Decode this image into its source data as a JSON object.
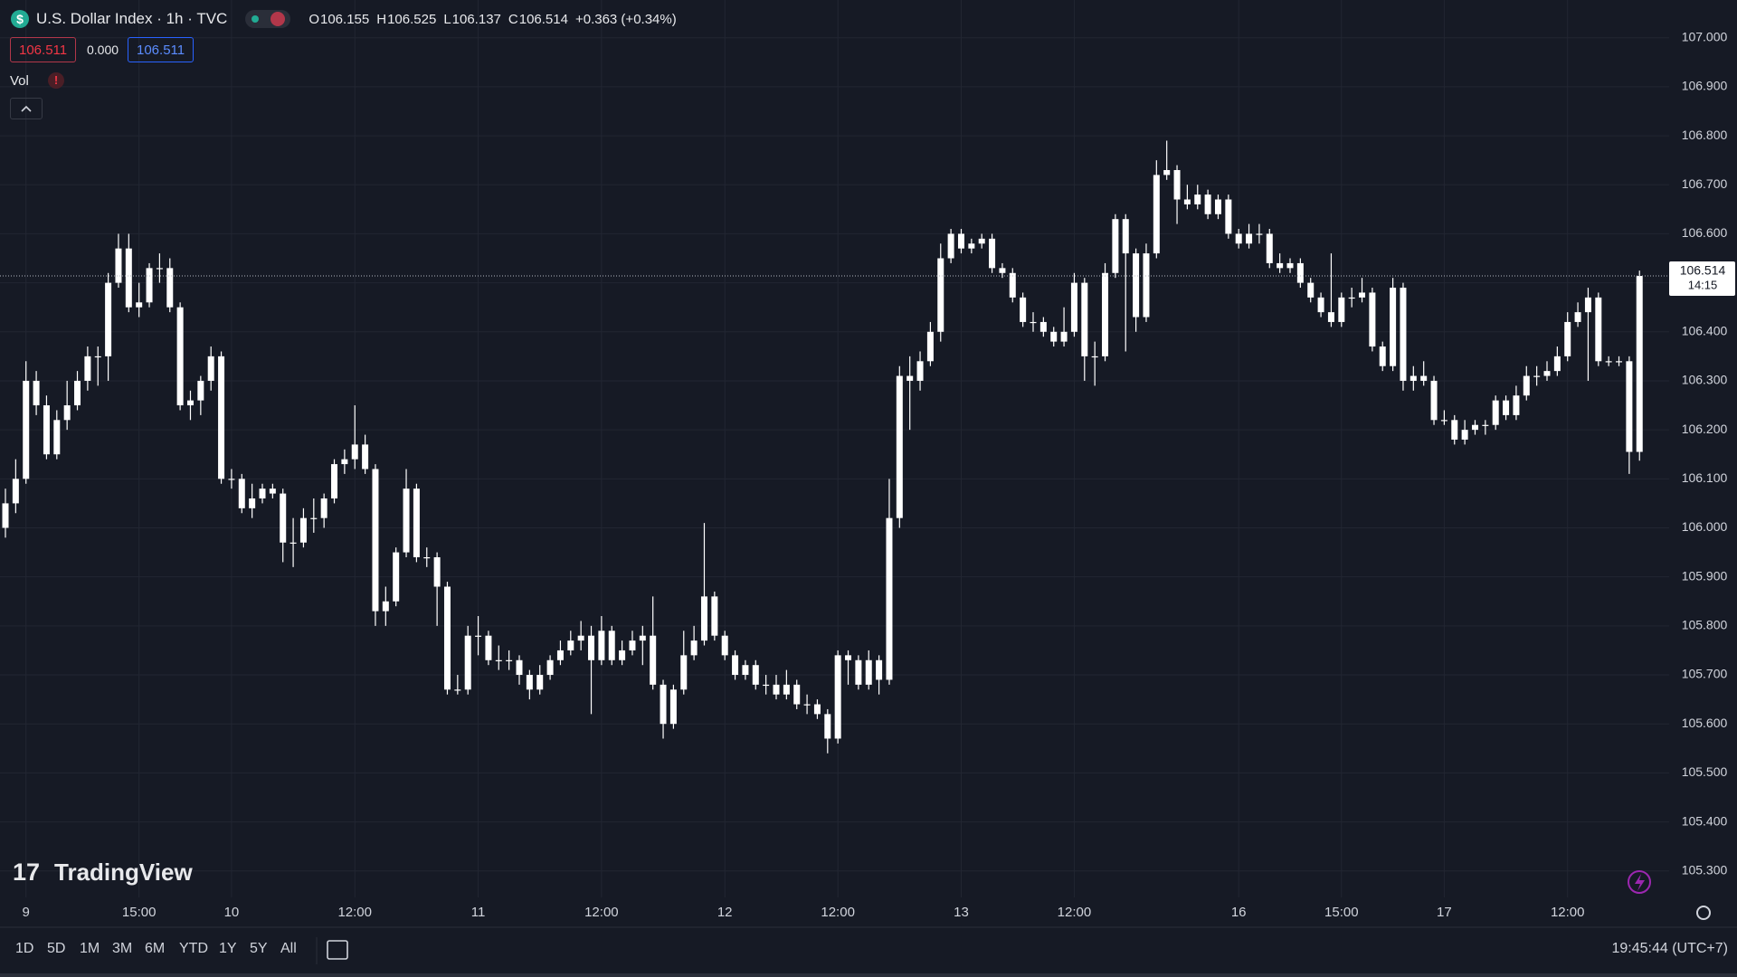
{
  "header": {
    "title": "U.S. Dollar Index · 1h · TVC",
    "ohlc_labels": [
      "O",
      "H",
      "L",
      "C"
    ],
    "change": "+0.363 (+0.34%)",
    "bid": "106.511",
    "spread": "0.000",
    "ask": "106.511",
    "indicator": "Vol",
    "alert": "!"
  },
  "logo": "TradingView",
  "toolbar": {
    "ranges": [
      "1D",
      "5D",
      "1M",
      "3M",
      "6M",
      "YTD",
      "1Y",
      "5Y",
      "All"
    ],
    "clock": "19:45:44 (UTC+7)"
  },
  "chart_data": {
    "type": "candlestick",
    "up_color": "#ffffff",
    "down_color": "#ffffff",
    "grid": true,
    "countdown": "14:15",
    "ylim": [
      105.246,
      107.077
    ],
    "yticks": [
      {
        "value": 105.3,
        "label": "105.300"
      },
      {
        "value": 105.4,
        "label": "105.400"
      },
      {
        "value": 105.5,
        "label": "105.500"
      },
      {
        "value": 105.6,
        "label": "105.600"
      },
      {
        "value": 105.7,
        "label": "105.700"
      },
      {
        "value": 105.8,
        "label": "105.800"
      },
      {
        "value": 105.9,
        "label": "105.900"
      },
      {
        "value": 106.0,
        "label": "106.000"
      },
      {
        "value": 106.1,
        "label": "106.100"
      },
      {
        "value": 106.2,
        "label": "106.200"
      },
      {
        "value": 106.3,
        "label": "106.300"
      },
      {
        "value": 106.4,
        "label": "106.400"
      },
      {
        "value": 106.5,
        "label": "106.500"
      },
      {
        "value": 106.6,
        "label": "106.600"
      },
      {
        "value": 106.7,
        "label": "106.700"
      },
      {
        "value": 106.8,
        "label": "106.800"
      },
      {
        "value": 106.9,
        "label": "106.900"
      },
      {
        "value": 107.0,
        "label": "107.000"
      }
    ],
    "categories": [
      null,
      null,
      "9",
      null,
      null,
      null,
      null,
      null,
      null,
      null,
      null,
      null,
      null,
      "15:00",
      null,
      null,
      null,
      null,
      null,
      null,
      null,
      null,
      "10",
      null,
      null,
      null,
      null,
      null,
      null,
      null,
      null,
      null,
      null,
      null,
      "12:00",
      null,
      null,
      null,
      null,
      null,
      null,
      null,
      null,
      null,
      null,
      null,
      "11",
      null,
      null,
      null,
      null,
      null,
      null,
      null,
      null,
      null,
      null,
      null,
      "12:00",
      null,
      null,
      null,
      null,
      null,
      null,
      null,
      null,
      null,
      null,
      null,
      "12",
      null,
      null,
      null,
      null,
      null,
      null,
      null,
      null,
      null,
      null,
      "12:00",
      null,
      null,
      null,
      null,
      null,
      null,
      null,
      null,
      null,
      null,
      null,
      "13",
      null,
      null,
      null,
      null,
      null,
      null,
      null,
      null,
      null,
      null,
      "12:00",
      null,
      null,
      null,
      null,
      null,
      null,
      null,
      null,
      null,
      null,
      null,
      null,
      null,
      null,
      null,
      "16",
      null,
      null,
      null,
      null,
      null,
      null,
      null,
      null,
      null,
      "15:00",
      null,
      null,
      null,
      null,
      null,
      null,
      null,
      null,
      null,
      "17",
      null,
      null,
      null,
      null,
      null,
      null,
      null,
      null,
      null,
      null,
      null,
      "12:00",
      null,
      null,
      null,
      null,
      null,
      null,
      null
    ],
    "candles": [
      [
        106.0,
        106.08,
        105.98,
        106.05
      ],
      [
        106.05,
        106.14,
        106.03,
        106.1
      ],
      [
        106.1,
        106.34,
        106.09,
        106.3
      ],
      [
        106.3,
        106.32,
        106.23,
        106.25
      ],
      [
        106.25,
        106.27,
        106.14,
        106.15
      ],
      [
        106.15,
        106.24,
        106.14,
        106.22
      ],
      [
        106.22,
        106.3,
        106.2,
        106.25
      ],
      [
        106.25,
        106.32,
        106.24,
        106.3
      ],
      [
        106.3,
        106.37,
        106.28,
        106.35
      ],
      [
        106.35,
        106.37,
        106.29,
        106.35
      ],
      [
        106.35,
        106.52,
        106.3,
        106.5
      ],
      [
        106.5,
        106.6,
        106.49,
        106.57
      ],
      [
        106.57,
        106.6,
        106.44,
        106.45
      ],
      [
        106.45,
        106.5,
        106.43,
        106.46
      ],
      [
        106.46,
        106.54,
        106.45,
        106.53
      ],
      [
        106.53,
        106.56,
        106.5,
        106.53
      ],
      [
        106.53,
        106.55,
        106.44,
        106.45
      ],
      [
        106.45,
        106.46,
        106.24,
        106.25
      ],
      [
        106.25,
        106.28,
        106.22,
        106.26
      ],
      [
        106.26,
        106.31,
        106.23,
        106.3
      ],
      [
        106.3,
        106.37,
        106.28,
        106.35
      ],
      [
        106.35,
        106.36,
        106.09,
        106.1
      ],
      [
        106.1,
        106.12,
        106.08,
        106.1
      ],
      [
        106.1,
        106.11,
        106.03,
        106.04
      ],
      [
        106.04,
        106.09,
        106.02,
        106.06
      ],
      [
        106.06,
        106.09,
        106.05,
        106.08
      ],
      [
        106.08,
        106.09,
        106.06,
        106.07
      ],
      [
        106.07,
        106.08,
        105.93,
        105.97
      ],
      [
        105.97,
        106.02,
        105.92,
        105.97
      ],
      [
        105.97,
        106.04,
        105.96,
        106.02
      ],
      [
        106.02,
        106.06,
        105.99,
        106.02
      ],
      [
        106.02,
        106.07,
        106.0,
        106.06
      ],
      [
        106.06,
        106.14,
        106.05,
        106.13
      ],
      [
        106.13,
        106.16,
        106.11,
        106.14
      ],
      [
        106.14,
        106.25,
        106.12,
        106.17
      ],
      [
        106.17,
        106.19,
        106.11,
        106.12
      ],
      [
        106.12,
        106.13,
        105.8,
        105.83
      ],
      [
        105.83,
        105.88,
        105.8,
        105.85
      ],
      [
        105.85,
        105.96,
        105.84,
        105.95
      ],
      [
        105.95,
        106.12,
        105.94,
        106.08
      ],
      [
        106.08,
        106.09,
        105.93,
        105.94
      ],
      [
        105.94,
        105.96,
        105.92,
        105.94
      ],
      [
        105.94,
        105.95,
        105.8,
        105.88
      ],
      [
        105.88,
        105.89,
        105.66,
        105.67
      ],
      [
        105.67,
        105.7,
        105.66,
        105.67
      ],
      [
        105.67,
        105.8,
        105.66,
        105.78
      ],
      [
        105.78,
        105.82,
        105.74,
        105.78
      ],
      [
        105.78,
        105.79,
        105.72,
        105.73
      ],
      [
        105.73,
        105.76,
        105.71,
        105.73
      ],
      [
        105.73,
        105.75,
        105.71,
        105.73
      ],
      [
        105.73,
        105.74,
        105.68,
        105.7
      ],
      [
        105.7,
        105.71,
        105.65,
        105.67
      ],
      [
        105.67,
        105.72,
        105.66,
        105.7
      ],
      [
        105.7,
        105.74,
        105.69,
        105.73
      ],
      [
        105.73,
        105.77,
        105.72,
        105.75
      ],
      [
        105.75,
        105.79,
        105.74,
        105.77
      ],
      [
        105.77,
        105.81,
        105.75,
        105.78
      ],
      [
        105.78,
        105.8,
        105.62,
        105.73
      ],
      [
        105.73,
        105.82,
        105.72,
        105.79
      ],
      [
        105.79,
        105.8,
        105.72,
        105.73
      ],
      [
        105.73,
        105.77,
        105.72,
        105.75
      ],
      [
        105.75,
        105.79,
        105.74,
        105.77
      ],
      [
        105.77,
        105.8,
        105.72,
        105.78
      ],
      [
        105.78,
        105.86,
        105.67,
        105.68
      ],
      [
        105.68,
        105.69,
        105.57,
        105.6
      ],
      [
        105.6,
        105.68,
        105.59,
        105.67
      ],
      [
        105.67,
        105.79,
        105.66,
        105.74
      ],
      [
        105.74,
        105.8,
        105.73,
        105.77
      ],
      [
        105.77,
        106.01,
        105.76,
        105.86
      ],
      [
        105.86,
        105.87,
        105.77,
        105.78
      ],
      [
        105.78,
        105.79,
        105.73,
        105.74
      ],
      [
        105.74,
        105.75,
        105.69,
        105.7
      ],
      [
        105.7,
        105.73,
        105.69,
        105.72
      ],
      [
        105.72,
        105.73,
        105.67,
        105.68
      ],
      [
        105.68,
        105.7,
        105.66,
        105.68
      ],
      [
        105.68,
        105.7,
        105.65,
        105.66
      ],
      [
        105.66,
        105.71,
        105.65,
        105.68
      ],
      [
        105.68,
        105.69,
        105.63,
        105.64
      ],
      [
        105.64,
        105.66,
        105.62,
        105.64
      ],
      [
        105.64,
        105.65,
        105.61,
        105.62
      ],
      [
        105.62,
        105.63,
        105.54,
        105.57
      ],
      [
        105.57,
        105.75,
        105.56,
        105.74
      ],
      [
        105.74,
        105.75,
        105.68,
        105.73
      ],
      [
        105.73,
        105.74,
        105.67,
        105.68
      ],
      [
        105.68,
        105.75,
        105.67,
        105.73
      ],
      [
        105.73,
        105.74,
        105.66,
        105.69
      ],
      [
        105.69,
        106.1,
        105.68,
        106.02
      ],
      [
        106.02,
        106.33,
        106.0,
        106.31
      ],
      [
        106.31,
        106.35,
        106.2,
        106.3
      ],
      [
        106.3,
        106.36,
        106.28,
        106.34
      ],
      [
        106.34,
        106.42,
        106.33,
        106.4
      ],
      [
        106.4,
        106.58,
        106.38,
        106.55
      ],
      [
        106.55,
        106.61,
        106.54,
        106.6
      ],
      [
        106.6,
        106.61,
        106.56,
        106.57
      ],
      [
        106.57,
        106.59,
        106.56,
        106.58
      ],
      [
        106.58,
        106.6,
        106.57,
        106.59
      ],
      [
        106.59,
        106.6,
        106.52,
        106.53
      ],
      [
        106.53,
        106.54,
        106.51,
        106.52
      ],
      [
        106.52,
        106.53,
        106.46,
        106.47
      ],
      [
        106.47,
        106.48,
        106.41,
        106.42
      ],
      [
        106.42,
        106.44,
        106.4,
        106.42
      ],
      [
        106.42,
        106.43,
        106.39,
        106.4
      ],
      [
        106.4,
        106.41,
        106.37,
        106.38
      ],
      [
        106.38,
        106.45,
        106.37,
        106.4
      ],
      [
        106.4,
        106.52,
        106.39,
        106.5
      ],
      [
        106.5,
        106.51,
        106.3,
        106.35
      ],
      [
        106.35,
        106.38,
        106.29,
        106.35
      ],
      [
        106.35,
        106.54,
        106.34,
        106.52
      ],
      [
        106.52,
        106.64,
        106.51,
        106.63
      ],
      [
        106.63,
        106.64,
        106.36,
        106.56
      ],
      [
        106.56,
        106.57,
        106.4,
        106.43
      ],
      [
        106.43,
        106.58,
        106.42,
        106.56
      ],
      [
        106.56,
        106.75,
        106.55,
        106.72
      ],
      [
        106.72,
        106.79,
        106.71,
        106.73
      ],
      [
        106.73,
        106.74,
        106.62,
        106.67
      ],
      [
        106.67,
        106.7,
        106.65,
        106.66
      ],
      [
        106.66,
        106.7,
        106.65,
        106.68
      ],
      [
        106.68,
        106.69,
        106.63,
        106.64
      ],
      [
        106.64,
        106.68,
        106.63,
        106.67
      ],
      [
        106.67,
        106.68,
        106.59,
        106.6
      ],
      [
        106.6,
        106.61,
        106.57,
        106.58
      ],
      [
        106.58,
        106.62,
        106.57,
        106.6
      ],
      [
        106.6,
        106.62,
        106.58,
        106.6
      ],
      [
        106.6,
        106.61,
        106.53,
        106.54
      ],
      [
        106.54,
        106.56,
        106.52,
        106.53
      ],
      [
        106.53,
        106.55,
        106.52,
        106.54
      ],
      [
        106.54,
        106.55,
        106.49,
        106.5
      ],
      [
        106.5,
        106.51,
        106.46,
        106.47
      ],
      [
        106.47,
        106.48,
        106.43,
        106.44
      ],
      [
        106.44,
        106.56,
        106.41,
        106.42
      ],
      [
        106.42,
        106.48,
        106.41,
        106.47
      ],
      [
        106.47,
        106.49,
        106.45,
        106.47
      ],
      [
        106.47,
        106.51,
        106.46,
        106.48
      ],
      [
        106.48,
        106.49,
        106.36,
        106.37
      ],
      [
        106.37,
        106.38,
        106.32,
        106.33
      ],
      [
        106.33,
        106.51,
        106.32,
        106.49
      ],
      [
        106.49,
        106.5,
        106.28,
        106.3
      ],
      [
        106.3,
        106.33,
        106.28,
        106.31
      ],
      [
        106.31,
        106.34,
        106.29,
        106.3
      ],
      [
        106.3,
        106.31,
        106.21,
        106.22
      ],
      [
        106.22,
        106.24,
        106.21,
        106.22
      ],
      [
        106.22,
        106.23,
        106.17,
        106.18
      ],
      [
        106.18,
        106.22,
        106.17,
        106.2
      ],
      [
        106.2,
        106.22,
        106.19,
        106.21
      ],
      [
        106.21,
        106.22,
        106.19,
        106.21
      ],
      [
        106.21,
        106.27,
        106.2,
        106.26
      ],
      [
        106.26,
        106.27,
        106.22,
        106.23
      ],
      [
        106.23,
        106.29,
        106.22,
        106.27
      ],
      [
        106.27,
        106.33,
        106.26,
        106.31
      ],
      [
        106.31,
        106.33,
        106.29,
        106.31
      ],
      [
        106.31,
        106.34,
        106.3,
        106.32
      ],
      [
        106.32,
        106.37,
        106.31,
        106.35
      ],
      [
        106.35,
        106.44,
        106.34,
        106.42
      ],
      [
        106.42,
        106.46,
        106.41,
        106.44
      ],
      [
        106.44,
        106.49,
        106.3,
        106.47
      ],
      [
        106.47,
        106.48,
        106.33,
        106.34
      ],
      [
        106.34,
        106.35,
        106.33,
        106.34
      ],
      [
        106.34,
        106.35,
        106.33,
        106.34
      ],
      [
        106.34,
        106.35,
        106.11,
        106.155
      ],
      [
        106.155,
        106.525,
        106.137,
        106.514
      ]
    ]
  }
}
